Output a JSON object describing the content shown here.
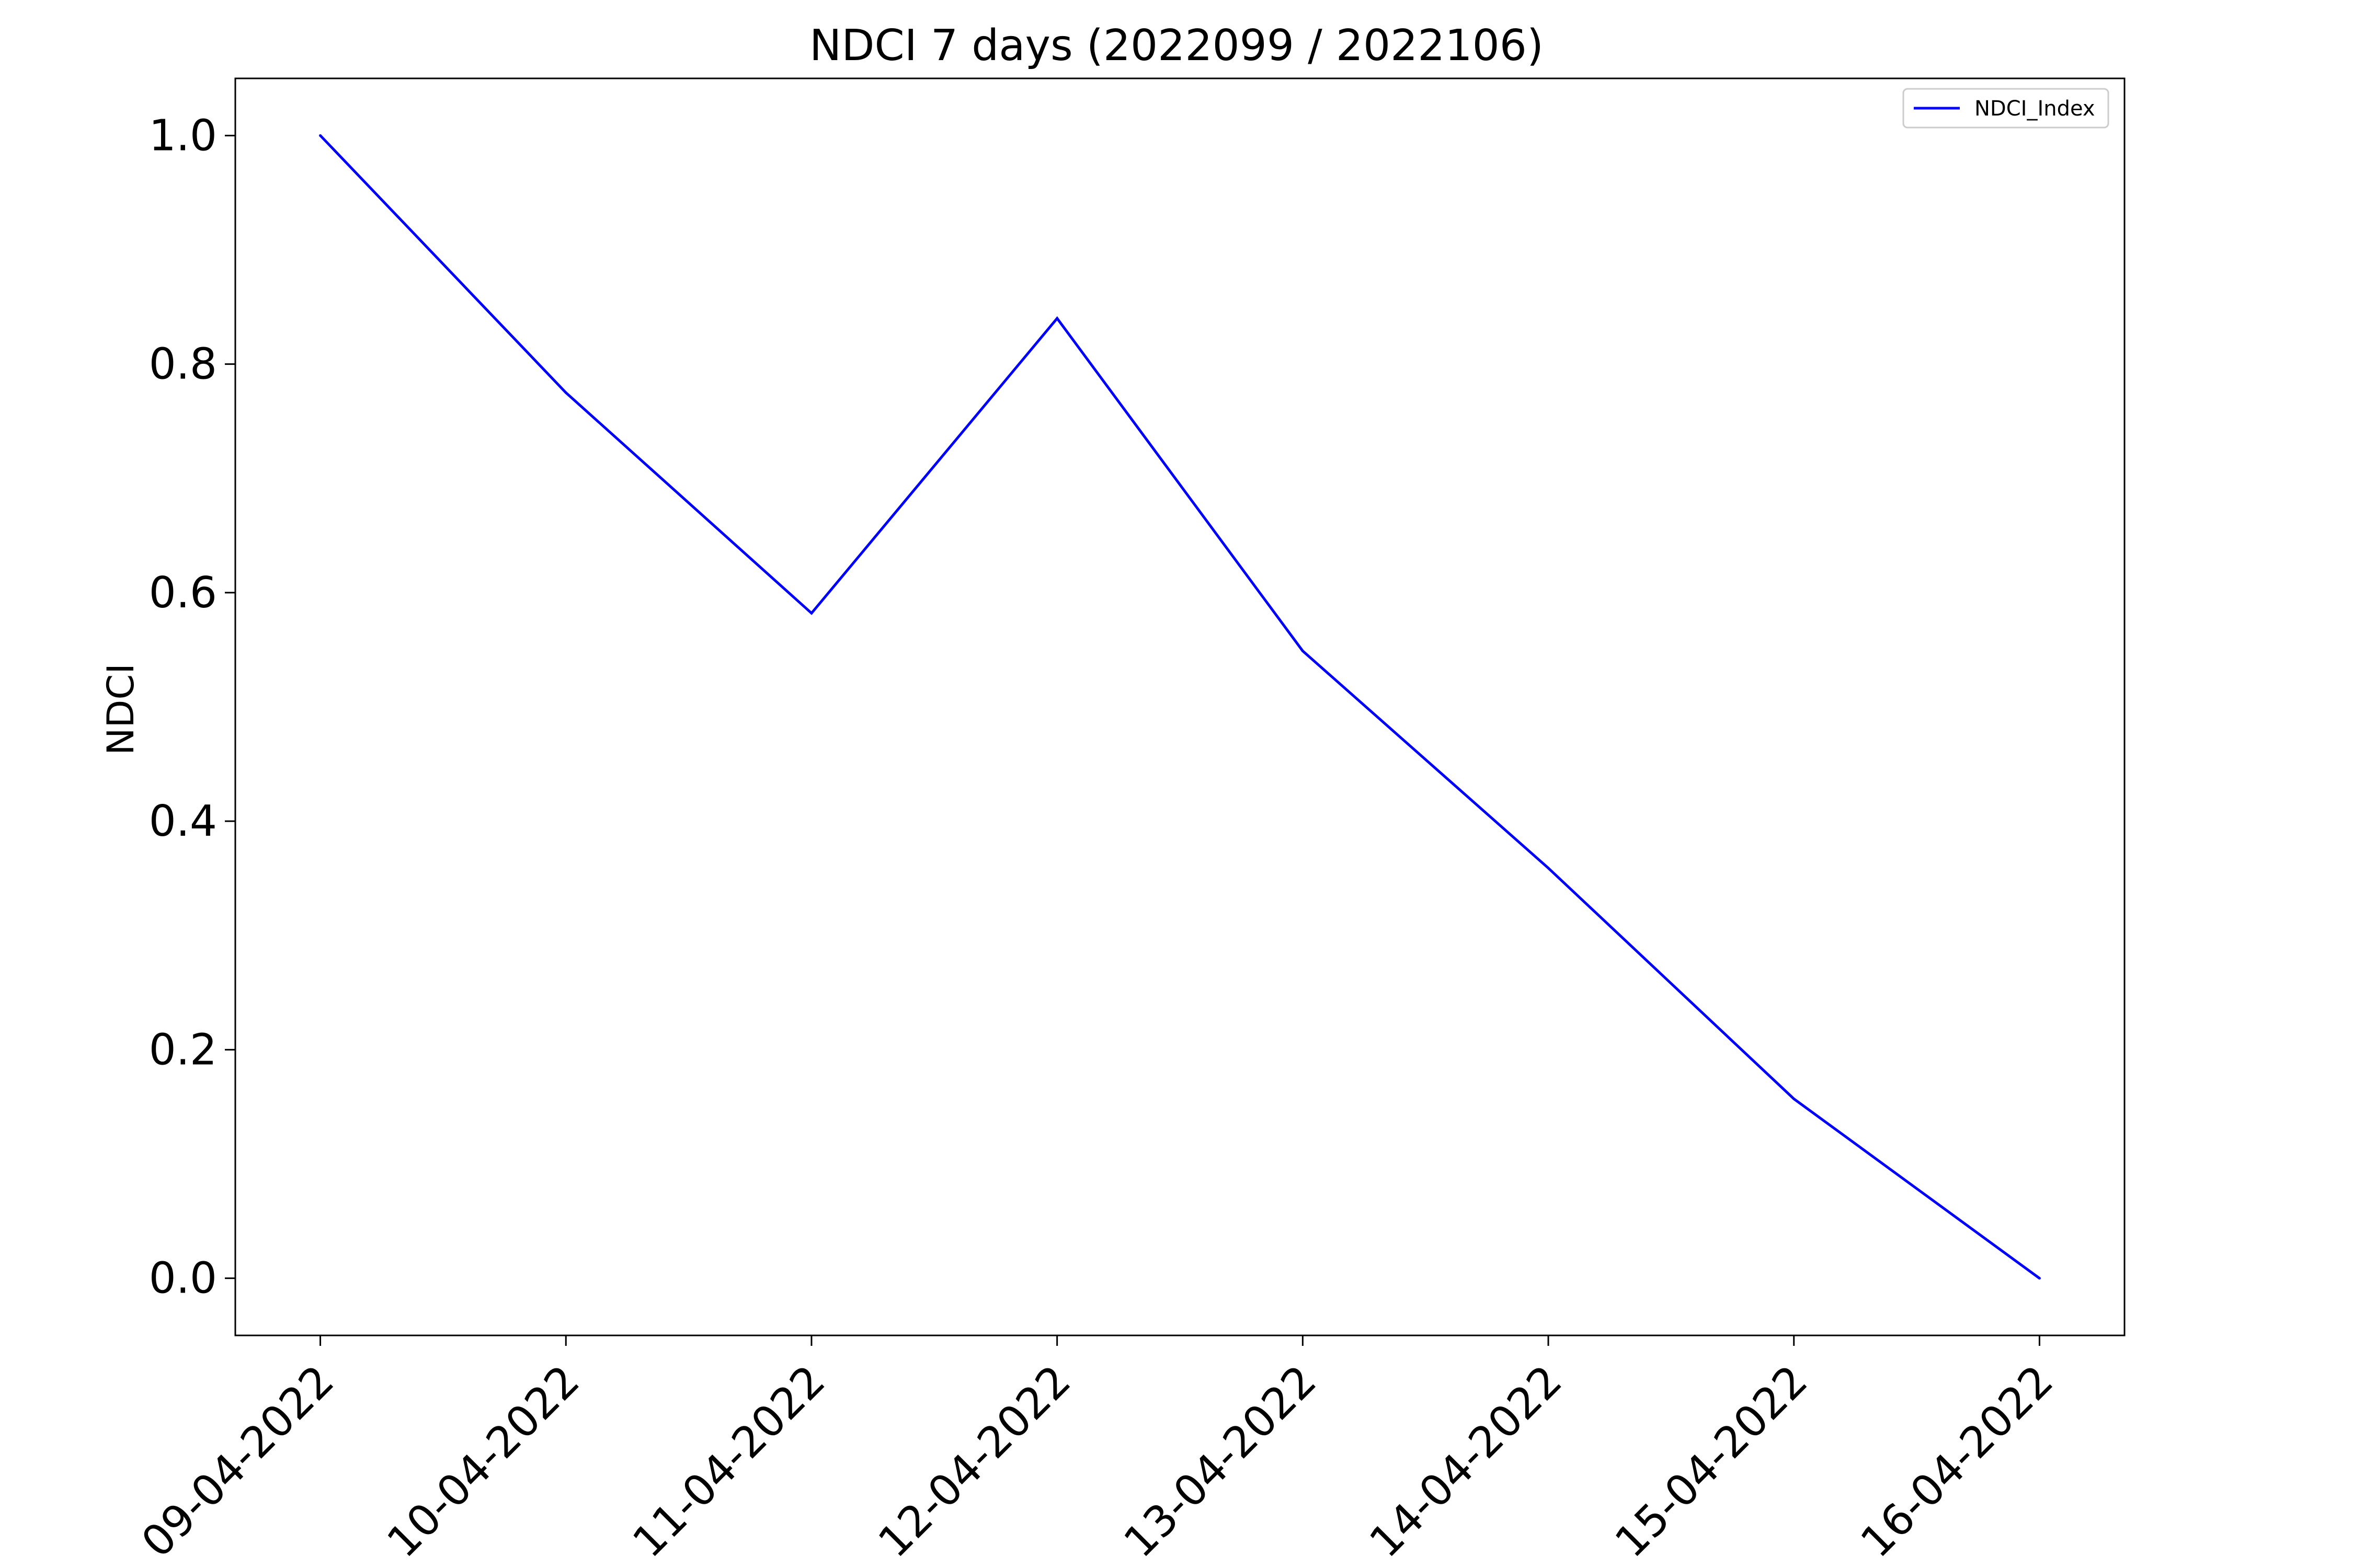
{
  "chart_data": {
    "type": "line",
    "title": "NDCI 7 days (2022099 / 2022106)",
    "xlabel": "",
    "ylabel": "NDCI",
    "categories": [
      "09-04-2022",
      "10-04-2022",
      "11-04-2022",
      "12-04-2022",
      "13-04-2022",
      "14-04-2022",
      "15-04-2022",
      "16-04-2022"
    ],
    "series": [
      {
        "name": "NDCI_Index",
        "color": "#0000ff",
        "values": [
          1.0,
          0.775,
          0.582,
          0.84,
          0.549,
          0.359,
          0.157,
          0.0
        ]
      }
    ],
    "ylim": [
      -0.05,
      1.05
    ],
    "yticks": [
      "0.0",
      "0.2",
      "0.4",
      "0.6",
      "0.8",
      "1.0"
    ],
    "grid": false,
    "legend_position": "top-right"
  }
}
